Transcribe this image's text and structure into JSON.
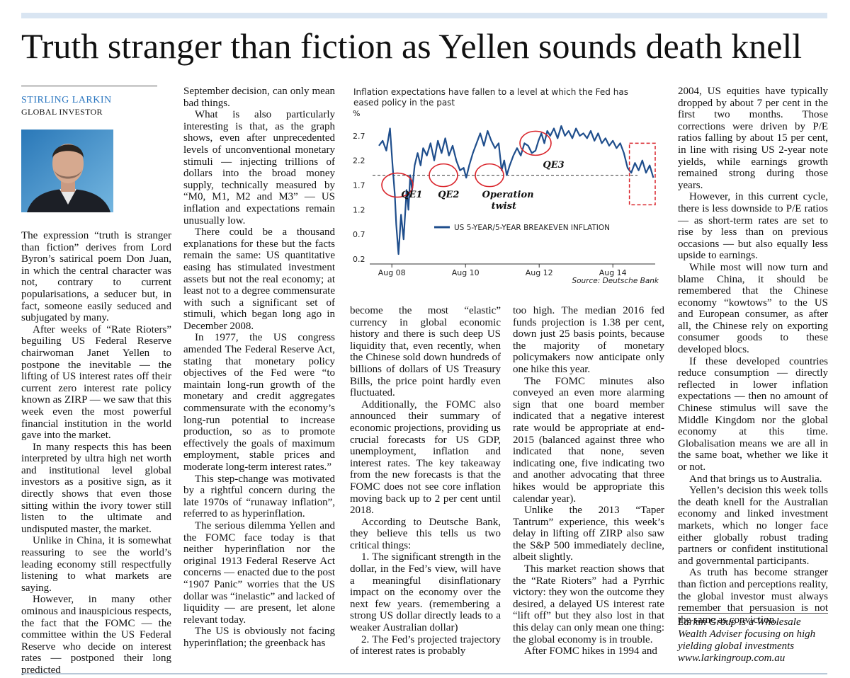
{
  "headline": "Truth stranger than fiction as Yellen sounds death knell",
  "byline": {
    "author": "STIRLING LARKIN",
    "role": "GLOBAL INVESTOR"
  },
  "columns": {
    "col1": [
      "The expression “truth is stranger than fiction” derives from Lord Byron’s satirical poem Don Juan, in which the central character was not, contrary to current popularisations, a seducer but, in fact, someone easily seduced and subjugated by many.",
      "After weeks of “Rate Rioters” beguiling US Federal Reserve chairwoman Janet Yellen to postpone the inevitable — the lifting of US interest rates off their current zero interest rate policy known as ZIRP — we saw that this week even the most powerful financial institution in the world gave into the market.",
      "In many respects this has been interpreted by ultra high net worth and institutional level global investors as a positive sign, as it directly shows that even those sitting within the ivory tower still listen to the ultimate and undisputed master, the market.",
      "Unlike in China, it is somewhat reassuring to see the world’s leading economy still respectfully listening to what markets are saying.",
      "However, in many other ominous and inauspicious respects, the fact that the FOMC — the committee within the US Federal Reserve who decide on interest rates — postponed their long predicted"
    ],
    "col2": [
      "September decision, can only mean bad things.",
      "What is also particularly interesting is that, as the graph shows, even after unprecedented levels of unconventional monetary stimuli — injecting trillions of dollars into the broad money supply, technically measured by “M0, M1, M2 and M3” — US inflation and expectations remain unusually low.",
      "There could be a thousand explanations for these but the facts remain the same: US quantitative easing has stimulated investment assets but not the real economy; at least not to a degree commensurate with such a significant set of stimuli, which began long ago in December 2008.",
      "In 1977, the US congress amended The Federal Reserve Act, stating that monetary policy objectives of the Fed were “to maintain long-run growth of the monetary and credit aggregates commensurate with the economy’s long-run potential to increase production, so as to promote effectively the goals of maximum employment, stable prices and moderate long-term interest rates.”",
      "This step-change was motivated by a rightful concern during the late 1970s of “runaway inflation”, referred to as hyperinflation.",
      "The serious dilemma Yellen and the FOMC face today is that neither hyperinflation nor the original 1913 Federal Reserve Act concerns — enacted due to the post “1907 Panic” worries that the US dollar was “inelastic” and lacked of liquidity — are present, let alone relevant today.",
      "The US is obviously not facing hyperinflation; the greenback has"
    ],
    "col3": [
      "become the most “elastic” currency in global economic history and there is such deep US liquidity that, even recently, when the Chinese sold down hundreds of billions of dollars of US Treasury Bills, the price point hardly even fluctuated.",
      "Additionally, the FOMC also announced their summary of economic projections, providing us crucial forecasts for US GDP, unemployment, inflation and interest rates. The key takeaway from the new forecasts is that the FOMC does not see core inflation moving back up to 2 per cent until 2018.",
      "According to Deutsche Bank, they believe this tells us two critical things:",
      "1. The significant strength in the dollar, in the Fed’s view, will have a meaningful disinflationary impact on the economy over the next few years. (remembering a strong US dollar directly leads to a weaker Australian dollar)",
      "2. The Fed’s projected trajectory of interest rates is probably"
    ],
    "col4_top": [
      "2004, US equities have typically dropped by about 7 per cent in the first two months. Those corrections were driven by P/E ratios falling by about 15 per cent, in line with rising US 2-year note yields, while earnings growth remained strong during those years.",
      "However, in this current cycle, there is less downside to P/E ratios — as short-term rates are set to rise by less than on previous occasions — but also equally less upside to earnings."
    ],
    "col4": [
      "too high. The median 2016 fed funds projection is 1.38 per cent, down just 25 basis points, because the majority of monetary policymakers now anticipate only one hike this year.",
      "The FOMC minutes also conveyed an even more alarming sign that one board member indicated that a negative interest rate would be appropriate at end-2015 (balanced against three who indicated that none, seven indicating one, five indicating two and another advocating that three hikes would be appropriate this calendar year).",
      "Unlike the 2013 “Taper Tantrum” experience, this week’s delay in lifting off ZIRP also saw the S&P 500 immediately decline, albeit slightly.",
      "This market reaction shows that the “Rate Rioters” had a Pyrrhic victory: they won the outcome they desired, a delayed US interest rate “lift off” but they also lost in that this delay can only mean one thing: the global economy is in trouble.",
      "After FOMC hikes in 1994 and"
    ],
    "col5": [
      "While most will now turn and blame China, it should be remembered that the Chinese economy “kowtows” to the US and European consumer, as after all, the Chinese rely on exporting consumer goods to these developed blocs.",
      "If these developed countries reduce consumption — directly reflected in lower inflation expectations — then no amount of Chinese stimulus will save the Middle Kingdom nor the global economy at this time. Globalisation means we are all in the same boat, whether we like it or not.",
      "And that brings us to Australia.",
      "Yellen’s decision this week tolls the death knell for the Australian economy and linked investment markets, which no longer face either globally robust trading partners or confident institutional and governmental participants.",
      "As truth has become stranger than fiction and perceptions reality, the global investor must always remember that persuasion is not the same as conviction."
    ]
  },
  "tagline": {
    "line1": "Larkin Group is a Wholesale",
    "line2": "Wealth Adviser focusing on high",
    "line3": "yielding global investments",
    "line4": "www.larkingroup.com.au"
  },
  "chart_data": {
    "type": "line",
    "title": "Inflation expectations have fallen to a level at which the Fed has eased policy in the past",
    "unit": "%",
    "yticks": [
      2.7,
      2.2,
      1.7,
      1.2,
      0.7,
      0.2
    ],
    "ylim": [
      0.2,
      2.9
    ],
    "xticks": [
      "Aug 08",
      "Aug 10",
      "Aug 12",
      "Aug 14"
    ],
    "series": [
      {
        "name": "US 5-YEAR/5-YEAR BREAKEVEN INFLATION",
        "color": "#1f4e8c",
        "x": [
          2008.25,
          2008.35,
          2008.45,
          2008.55,
          2008.62,
          2008.68,
          2008.72,
          2008.78,
          2008.85,
          2008.92,
          2009.0,
          2009.05,
          2009.1,
          2009.15,
          2009.22,
          2009.3,
          2009.38,
          2009.45,
          2009.55,
          2009.65,
          2009.75,
          2009.85,
          2009.95,
          2010.05,
          2010.15,
          2010.25,
          2010.35,
          2010.45,
          2010.55,
          2010.62,
          2010.7,
          2010.8,
          2010.9,
          2011.0,
          2011.1,
          2011.2,
          2011.3,
          2011.4,
          2011.5,
          2011.58,
          2011.65,
          2011.72,
          2011.8,
          2011.9,
          2012.0,
          2012.1,
          2012.2,
          2012.3,
          2012.4,
          2012.5,
          2012.58,
          2012.66,
          2012.74,
          2012.82,
          2012.9,
          2013.0,
          2013.1,
          2013.2,
          2013.3,
          2013.4,
          2013.5,
          2013.6,
          2013.7,
          2013.8,
          2013.9,
          2014.0,
          2014.1,
          2014.2,
          2014.3,
          2014.4,
          2014.5,
          2014.6,
          2014.7,
          2014.8,
          2014.9,
          2015.0,
          2015.1,
          2015.2,
          2015.3,
          2015.4,
          2015.5,
          2015.6,
          2015.7
        ],
        "y": [
          2.5,
          2.6,
          2.4,
          2.85,
          2.1,
          1.5,
          0.9,
          0.3,
          1.1,
          0.6,
          1.6,
          1.2,
          1.9,
          1.6,
          2.1,
          2.35,
          2.1,
          2.45,
          2.3,
          2.55,
          2.2,
          2.6,
          2.35,
          2.65,
          2.3,
          2.5,
          2.2,
          2.0,
          2.05,
          1.85,
          2.1,
          2.35,
          2.55,
          2.75,
          2.5,
          2.8,
          2.6,
          2.45,
          2.55,
          2.0,
          2.2,
          1.9,
          2.1,
          2.3,
          2.45,
          2.3,
          2.55,
          2.5,
          2.35,
          2.4,
          2.6,
          2.75,
          2.55,
          2.8,
          2.7,
          2.85,
          2.65,
          2.9,
          2.7,
          2.8,
          2.65,
          2.85,
          2.7,
          2.75,
          2.65,
          2.8,
          2.6,
          2.75,
          2.55,
          2.65,
          2.5,
          2.6,
          2.45,
          2.55,
          2.35,
          2.05,
          1.95,
          2.15,
          2.0,
          2.2,
          1.95,
          2.1,
          1.85
        ]
      }
    ],
    "reference_line": {
      "value": 1.9,
      "style": "dashed"
    },
    "annotations": [
      "QE1",
      "QE2",
      "Operation",
      "twist",
      "QE3"
    ],
    "source": "Source: Deutsche Bank",
    "grid": false
  }
}
